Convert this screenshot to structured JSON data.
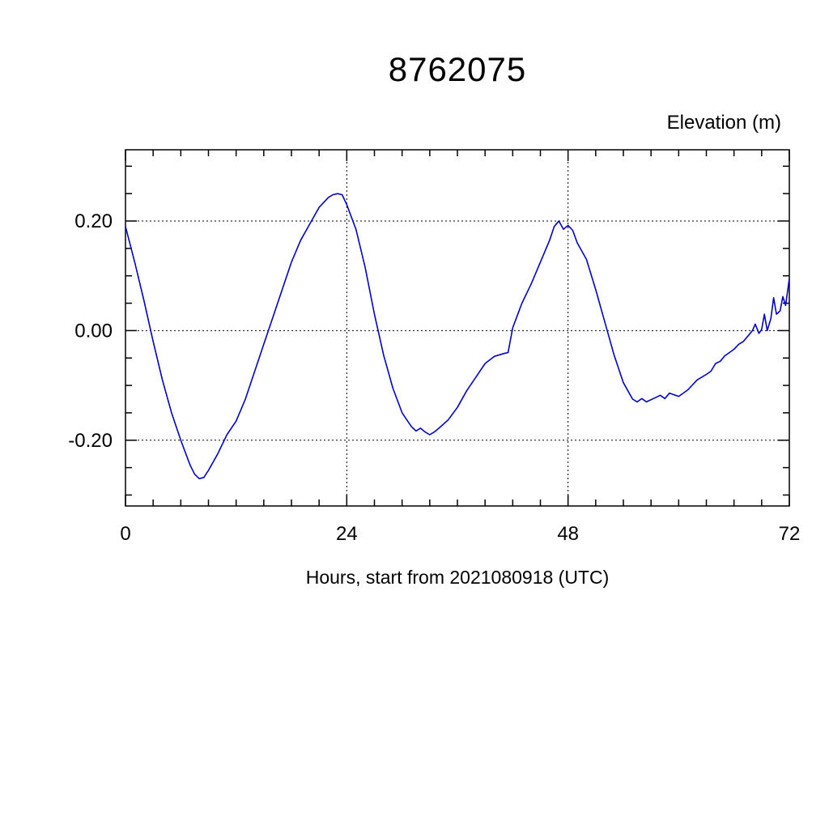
{
  "title": "8762075",
  "ylabel": "Elevation (m)",
  "xlabel": "Hours, start from 2021080918 (UTC)",
  "chart_data": {
    "type": "line",
    "title": "8762075",
    "xlabel": "Hours, start from 2021080918 (UTC)",
    "ylabel": "Elevation (m)",
    "xlim": [
      0,
      72
    ],
    "ylim": [
      -0.32,
      0.33
    ],
    "xticks": [
      0,
      24,
      48,
      72
    ],
    "xtick_labels": [
      "0",
      "24",
      "48",
      "72"
    ],
    "yticks": [
      -0.2,
      0.0,
      0.2
    ],
    "ytick_labels": [
      "-0.20",
      "0.00",
      "0.20"
    ],
    "minor_x": 3,
    "minor_y": 0.05,
    "grid_x": [
      24,
      48
    ],
    "grid_y": [
      -0.2,
      0.0,
      0.2
    ],
    "grid_style": "dashed",
    "legend": "none",
    "line_color": "#0000cc",
    "frame_color": "#000000",
    "x": [
      0,
      1,
      2,
      3,
      4,
      5,
      6,
      7,
      7.5,
      8,
      8.5,
      9,
      10,
      11,
      12,
      13,
      14,
      15,
      16,
      17,
      18,
      19,
      20,
      21,
      22,
      22.5,
      23,
      23.5,
      24,
      25,
      26,
      27,
      28,
      29,
      30,
      31,
      31.5,
      32,
      32.5,
      33,
      33.5,
      34,
      35,
      36,
      37,
      38,
      39,
      40,
      41,
      41.5,
      42,
      43,
      44,
      45,
      46,
      46.5,
      47,
      47.5,
      48,
      48.5,
      49,
      50,
      51,
      52,
      53,
      54,
      55,
      55.5,
      56,
      56.5,
      57,
      58,
      58.5,
      59,
      60,
      60.5,
      61,
      62,
      63,
      63.5,
      64,
      64.5,
      65,
      65.5,
      66,
      66.5,
      67,
      67.5,
      68,
      68.3,
      68.7,
      69,
      69.3,
      69.6,
      70,
      70.3,
      70.6,
      71,
      71.3,
      71.6,
      72
    ],
    "y": [
      0.19,
      0.125,
      0.055,
      -0.02,
      -0.09,
      -0.15,
      -0.2,
      -0.245,
      -0.262,
      -0.27,
      -0.268,
      -0.255,
      -0.225,
      -0.19,
      -0.165,
      -0.125,
      -0.075,
      -0.025,
      0.025,
      0.075,
      0.125,
      0.165,
      0.195,
      0.225,
      0.243,
      0.248,
      0.25,
      0.248,
      0.23,
      0.185,
      0.115,
      0.03,
      -0.045,
      -0.105,
      -0.15,
      -0.175,
      -0.183,
      -0.178,
      -0.185,
      -0.19,
      -0.185,
      -0.178,
      -0.163,
      -0.14,
      -0.11,
      -0.085,
      -0.06,
      -0.047,
      -0.042,
      -0.04,
      0.005,
      0.05,
      0.085,
      0.125,
      0.165,
      0.19,
      0.2,
      0.185,
      0.192,
      0.183,
      0.16,
      0.13,
      0.075,
      0.015,
      -0.045,
      -0.095,
      -0.125,
      -0.13,
      -0.124,
      -0.13,
      -0.126,
      -0.118,
      -0.124,
      -0.114,
      -0.12,
      -0.114,
      -0.108,
      -0.09,
      -0.08,
      -0.074,
      -0.06,
      -0.056,
      -0.046,
      -0.04,
      -0.034,
      -0.025,
      -0.02,
      -0.01,
      0.0,
      0.012,
      -0.005,
      0.002,
      0.03,
      0.0,
      0.022,
      0.06,
      0.03,
      0.036,
      0.062,
      0.046,
      0.095
    ]
  }
}
